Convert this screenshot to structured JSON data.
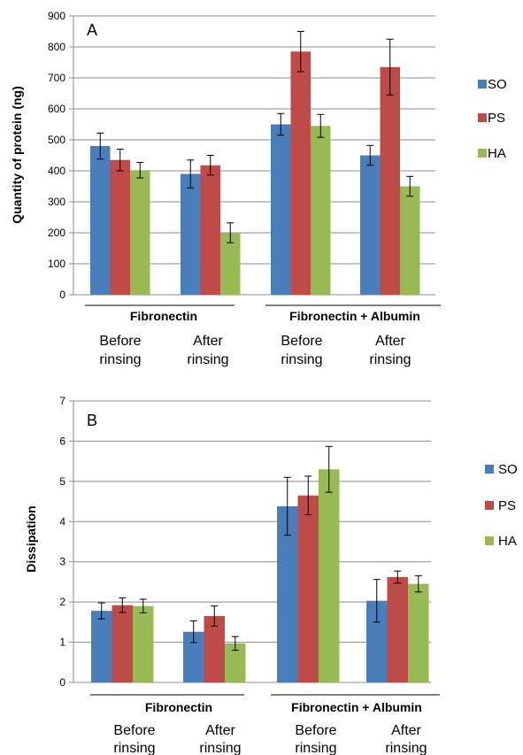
{
  "colors": {
    "SO": "#4a7ebb",
    "PS": "#be4b48",
    "HA": "#98b954",
    "grid": "#8c8c8c",
    "axis": "#8c8c8c"
  },
  "chart_data": [
    {
      "type": "bar",
      "panel_label": "A",
      "ylabel": "Quantity of protein  (ng)",
      "ylim": [
        0,
        900
      ],
      "yticks": [
        0,
        100,
        200,
        300,
        400,
        500,
        600,
        700,
        800,
        900
      ],
      "grid": true,
      "legend_position": "right",
      "groups": [
        {
          "label": "Fibronectin",
          "categories": [
            [
              "Before",
              "rinsing"
            ],
            [
              "After",
              "rinsing"
            ]
          ]
        },
        {
          "label": "Fibronectin + Albumin",
          "categories": [
            [
              "Before",
              "rinsing"
            ],
            [
              "After",
              "rinsing"
            ]
          ]
        }
      ],
      "series": [
        {
          "name": "SO",
          "values": [
            480,
            390,
            550,
            450
          ],
          "errors": [
            42,
            45,
            35,
            32
          ]
        },
        {
          "name": "PS",
          "values": [
            435,
            418,
            785,
            735
          ],
          "errors": [
            35,
            32,
            65,
            90
          ]
        },
        {
          "name": "HA",
          "values": [
            402,
            200,
            545,
            350
          ],
          "errors": [
            25,
            32,
            37,
            32
          ]
        }
      ]
    },
    {
      "type": "bar",
      "panel_label": "B",
      "ylabel": "Dissipation",
      "ylim": [
        0,
        7
      ],
      "yticks": [
        0,
        1,
        2,
        3,
        4,
        5,
        6,
        7
      ],
      "grid": true,
      "legend_position": "right",
      "groups": [
        {
          "label": "Fibronectin",
          "categories": [
            [
              "Before",
              "rinsing"
            ],
            [
              "After",
              "rinsing"
            ]
          ]
        },
        {
          "label": "Fibronectin + Albumin",
          "categories": [
            [
              "Before",
              "rinsing"
            ],
            [
              "After",
              "rinsing"
            ]
          ]
        }
      ],
      "series": [
        {
          "name": "SO",
          "values": [
            1.78,
            1.26,
            4.38,
            2.03
          ],
          "errors": [
            0.2,
            0.27,
            0.72,
            0.53
          ]
        },
        {
          "name": "PS",
          "values": [
            1.92,
            1.65,
            4.65,
            2.62
          ],
          "errors": [
            0.18,
            0.25,
            0.48,
            0.15
          ]
        },
        {
          "name": "HA",
          "values": [
            1.9,
            0.97,
            5.3,
            2.45
          ],
          "errors": [
            0.17,
            0.17,
            0.57,
            0.2
          ]
        }
      ]
    }
  ]
}
